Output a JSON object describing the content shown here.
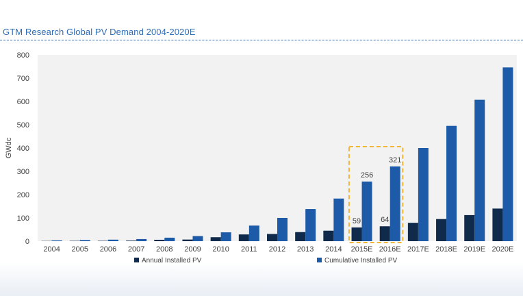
{
  "header": {
    "title": "GTM Research Global PV Demand 2004-2020E"
  },
  "colors": {
    "annual": "#0f2a4a",
    "cumulative": "#1d5aa8",
    "highlight": "#f2b632",
    "plot_bg": "#f2f2f2"
  },
  "chart_data": {
    "type": "bar",
    "title": "GTM Research Global PV Demand 2004-2020E",
    "xlabel": "",
    "ylabel": "GWdc",
    "ylim": [
      0,
      800
    ],
    "yticks": [
      0,
      100,
      200,
      300,
      400,
      500,
      600,
      700,
      800
    ],
    "categories": [
      "2004",
      "2005",
      "2006",
      "2007",
      "2008",
      "2009",
      "2010",
      "2011",
      "2012",
      "2013",
      "2014",
      "2015E",
      "2016E",
      "2017E",
      "2018E",
      "2019E",
      "2020E"
    ],
    "series": [
      {
        "name": "Annual Installed PV",
        "values": [
          1,
          1.5,
          1.6,
          2.5,
          6,
          7,
          17,
          29,
          31,
          39,
          45,
          59,
          64,
          79,
          95,
          112,
          140
        ]
      },
      {
        "name": "Cumulative Installed PV",
        "values": [
          3.5,
          5,
          6.5,
          9,
          15,
          22,
          38,
          67,
          100,
          138,
          183,
          256,
          321,
          400,
          495,
          607,
          746
        ]
      }
    ],
    "data_labels": [
      {
        "series": 0,
        "category": "2015E",
        "text": "59"
      },
      {
        "series": 1,
        "category": "2015E",
        "text": "256"
      },
      {
        "series": 0,
        "category": "2016E",
        "text": "64"
      },
      {
        "series": 1,
        "category": "2016E",
        "text": "321"
      }
    ],
    "highlight_categories": [
      "2015E",
      "2016E"
    ],
    "grid": false,
    "legend": "bottom"
  }
}
